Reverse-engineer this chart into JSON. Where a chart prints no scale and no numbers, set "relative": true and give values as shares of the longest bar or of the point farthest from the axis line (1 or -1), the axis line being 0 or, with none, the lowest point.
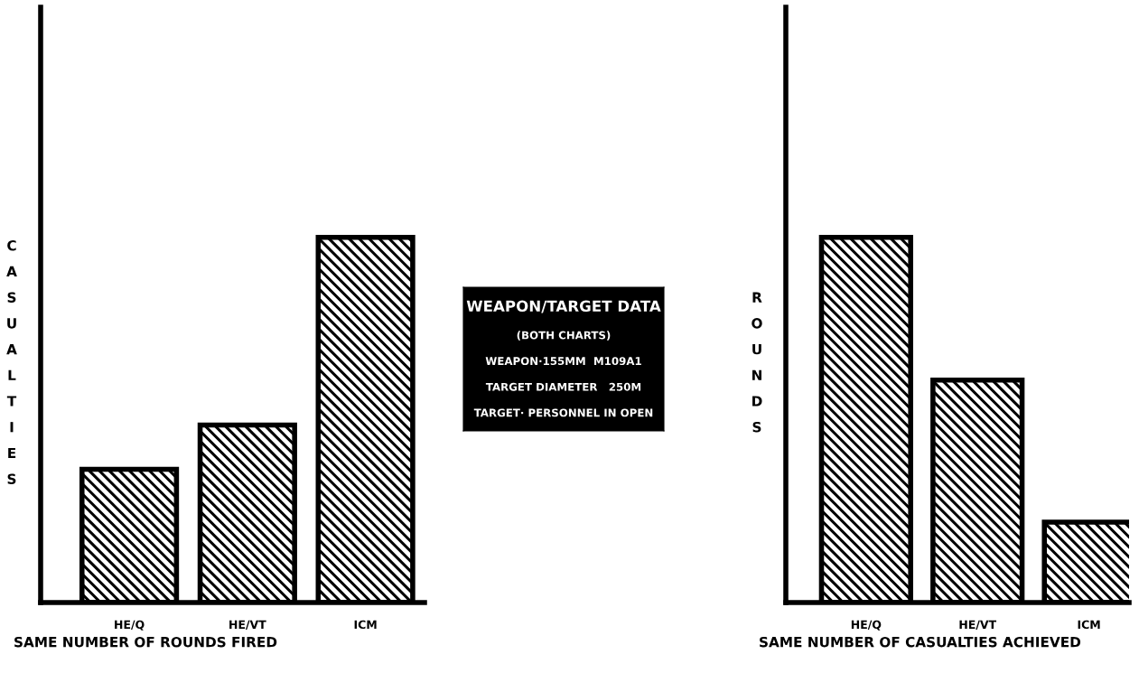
{
  "chart_data": [
    {
      "type": "bar",
      "relative": true,
      "categories": [
        "HE/Q",
        "HE/VT",
        "ICM"
      ],
      "values": [
        0.365,
        0.486,
        1
      ],
      "color": "#000000",
      "ylabel": "CASUALTIES",
      "xlabel": "SAME NUMBER OF ROUNDS FIRED",
      "grid": false,
      "legend": false
    },
    {
      "type": "other",
      "title": "WEAPON/TARGET DATA",
      "annotations": [
        "(BOTH CHARTS)",
        "WEAPON·155MM  M109A1",
        "TARGET DIAMETER   250M",
        "TARGET· PERSONNEL IN OPEN"
      ]
    },
    {
      "type": "bar",
      "relative": true,
      "categories": [
        "HE/Q",
        "HE/VT",
        "ICM"
      ],
      "values": [
        1,
        0.609,
        0.22
      ],
      "color": "#000000",
      "ylabel": "ROUNDS",
      "xlabel": "SAME NUMBER OF CASUALTIES ACHIEVED",
      "grid": false,
      "legend": false
    }
  ]
}
